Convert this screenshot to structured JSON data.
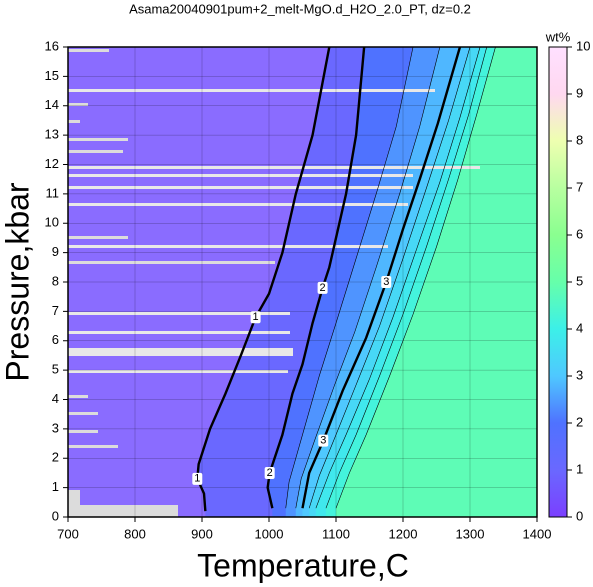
{
  "chart_data": {
    "type": "contour",
    "title": "Asama20040901pum+2_melt-MgO.d_H2O_2.0_PT, dz=0.2",
    "x_label": "Temperature,C",
    "y_label": "Pressure,kbar",
    "colorbar_label": "wt%",
    "xlim": [
      700,
      1400
    ],
    "xticks": [
      700,
      800,
      900,
      1000,
      1100,
      1200,
      1300,
      1400
    ],
    "ylim": [
      0,
      16
    ],
    "yticks": [
      0,
      1,
      2,
      3,
      4,
      5,
      6,
      7,
      8,
      9,
      10,
      11,
      12,
      13,
      14,
      15,
      16
    ],
    "zlim": [
      0,
      10
    ],
    "zticks": [
      0,
      1,
      2,
      3,
      4,
      5,
      6,
      7,
      8,
      9,
      10
    ],
    "grid": true,
    "background": "#8a6cff",
    "colormap": [
      {
        "value": 0,
        "color": "#7b3fff"
      },
      {
        "value": 1,
        "color": "#6a68ff"
      },
      {
        "value": 2,
        "color": "#4f72ff"
      },
      {
        "value": 3,
        "color": "#4fc8ff"
      },
      {
        "value": 4,
        "color": "#3cf0e8"
      },
      {
        "value": 5,
        "color": "#66ffaa"
      },
      {
        "value": 6,
        "color": "#8aff90"
      },
      {
        "value": 7,
        "color": "#b8ffa0"
      },
      {
        "value": 8,
        "color": "#eeffb0"
      },
      {
        "value": 9,
        "color": "#ffd8f0"
      },
      {
        "value": 10,
        "color": "#ffe0ff"
      }
    ],
    "contours": [
      {
        "level": 1,
        "x": [
          905,
          903,
          893,
          895,
          912,
          935,
          958,
          980,
          1000,
          1020,
          1040,
          1065,
          1090
        ],
        "y": [
          0.2,
          0.8,
          1.3,
          1.8,
          3.0,
          4.2,
          5.5,
          6.8,
          7.6,
          9.0,
          11,
          13,
          16
        ]
      },
      {
        "level": 2,
        "x": [
          1005,
          998,
          1001,
          1020,
          1035,
          1050,
          1065,
          1080,
          1090,
          1100,
          1115,
          1130,
          1142
        ],
        "y": [
          0.3,
          1.0,
          1.5,
          2.8,
          4.2,
          5.2,
          6.6,
          7.8,
          8.5,
          9.5,
          11,
          13,
          16
        ]
      },
      {
        "level": 2.4,
        "x": [
          1025,
          1030,
          1050,
          1075,
          1100,
          1130,
          1160,
          1190,
          1215
        ],
        "y": [
          0.3,
          1.2,
          2.8,
          4.8,
          6.6,
          8.8,
          11,
          13.3,
          16
        ]
      },
      {
        "level": 2.8,
        "x": [
          1040,
          1048,
          1068,
          1098,
          1128,
          1160,
          1195,
          1225,
          1255
        ],
        "y": [
          0.3,
          1.3,
          2.6,
          4.5,
          6.3,
          8.5,
          11,
          13.3,
          16
        ]
      },
      {
        "level": 3,
        "x": [
          1050,
          1060,
          1081,
          1110,
          1145,
          1175,
          1200,
          1225,
          1252,
          1285
        ],
        "y": [
          0.3,
          1.5,
          2.6,
          4.3,
          6.1,
          8.0,
          9.8,
          11.5,
          13.4,
          16
        ]
      },
      {
        "level": 3.4,
        "x": [
          1060,
          1075,
          1100,
          1130,
          1165,
          1200,
          1235,
          1268,
          1300
        ],
        "y": [
          0.3,
          1.4,
          2.8,
          4.5,
          6.5,
          8.8,
          11.2,
          13.5,
          16
        ]
      },
      {
        "level": 3.8,
        "x": [
          1070,
          1090,
          1115,
          1150,
          1185,
          1220,
          1255,
          1285,
          1315
        ],
        "y": [
          0.3,
          1.5,
          2.8,
          4.7,
          6.8,
          9.1,
          11.4,
          13.6,
          16
        ]
      },
      {
        "level": 4.2,
        "x": [
          1085,
          1105,
          1130,
          1165,
          1200,
          1235,
          1268,
          1298,
          1325
        ],
        "y": [
          0.3,
          1.5,
          2.8,
          4.8,
          6.9,
          9.2,
          11.5,
          13.7,
          16
        ]
      },
      {
        "level": 4.8,
        "x": [
          1100,
          1120,
          1145,
          1180,
          1215,
          1250,
          1282,
          1310,
          1338
        ],
        "y": [
          0.3,
          1.5,
          2.8,
          4.8,
          6.9,
          9.2,
          11.5,
          13.7,
          16
        ]
      }
    ]
  }
}
